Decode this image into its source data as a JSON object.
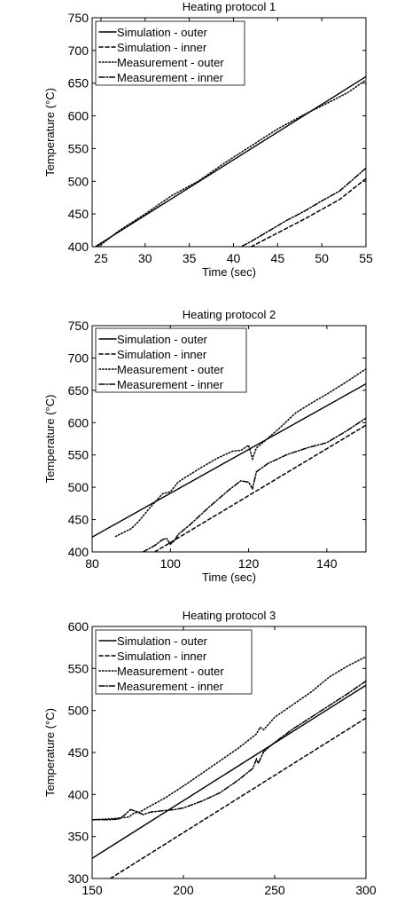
{
  "chart_data": [
    {
      "type": "line",
      "title": "Heating protocol 1",
      "xlabel": "Time (sec)",
      "ylabel": "Temperature (°C)",
      "xlim": [
        24,
        55
      ],
      "ylim": [
        400,
        750
      ],
      "xticks": [
        25,
        30,
        35,
        40,
        45,
        50,
        55
      ],
      "yticks": [
        400,
        450,
        500,
        550,
        600,
        650,
        700,
        750
      ],
      "xtick_labels": [
        "25",
        "30",
        "35",
        "40",
        "45",
        "50",
        "55"
      ],
      "ytick_labels": [
        "400",
        "450",
        "500",
        "550",
        "600",
        "650",
        "700",
        "750"
      ],
      "legend_position": "top-left",
      "grid": false,
      "series": [
        {
          "name": "Simulation - outer",
          "style": "solid",
          "x": [
            24,
            55
          ],
          "y": [
            397,
            660
          ]
        },
        {
          "name": "Simulation - inner",
          "style": "dashed",
          "x": [
            42,
            44,
            46,
            48,
            50,
            52,
            55
          ],
          "y": [
            400,
            414,
            428,
            442,
            457,
            472,
            504
          ]
        },
        {
          "name": "Measurement - outer",
          "style": "dotted",
          "x": [
            24,
            25,
            27,
            30,
            33,
            36,
            39,
            42,
            45,
            48,
            51,
            53,
            55
          ],
          "y": [
            397,
            403,
            424,
            450,
            478,
            500,
            528,
            554,
            580,
            602,
            622,
            636,
            655
          ]
        },
        {
          "name": "Measurement - inner",
          "style": "dashdot",
          "x": [
            41,
            42,
            44,
            46,
            48,
            50,
            52,
            55
          ],
          "y": [
            401,
            408,
            424,
            440,
            454,
            470,
            485,
            520
          ]
        }
      ]
    },
    {
      "type": "line",
      "title": "Heating protocol 2",
      "xlabel": "Time (sec)",
      "ylabel": "Temperature (°C)",
      "xlim": [
        80,
        150
      ],
      "ylim": [
        400,
        750
      ],
      "xticks": [
        80,
        100,
        120,
        140
      ],
      "yticks": [
        400,
        450,
        500,
        550,
        600,
        650,
        700,
        750
      ],
      "xtick_labels": [
        "80",
        "100",
        "120",
        "140"
      ],
      "ytick_labels": [
        "400",
        "450",
        "500",
        "550",
        "600",
        "650",
        "700",
        "750"
      ],
      "legend_position": "top-left",
      "grid": false,
      "series": [
        {
          "name": "Simulation - outer",
          "style": "solid",
          "x": [
            80,
            150
          ],
          "y": [
            423,
            660
          ]
        },
        {
          "name": "Simulation - inner",
          "style": "dashed",
          "x": [
            96,
            150
          ],
          "y": [
            400,
            596
          ]
        },
        {
          "name": "Measurement - outer",
          "style": "dotted",
          "x": [
            86,
            90,
            92,
            95,
            98,
            100,
            102,
            104,
            108,
            112,
            116,
            118,
            120,
            121,
            122,
            124,
            128,
            132,
            136,
            140,
            145,
            150
          ],
          "y": [
            424,
            436,
            448,
            470,
            490,
            493,
            508,
            516,
            531,
            545,
            556,
            557,
            565,
            544,
            561,
            571,
            592,
            615,
            630,
            644,
            663,
            683
          ]
        },
        {
          "name": "Measurement - inner",
          "style": "dashdot",
          "x": [
            93,
            96,
            98,
            99,
            100,
            101,
            102,
            105,
            110,
            115,
            118,
            120,
            121,
            122,
            125,
            130,
            135,
            140,
            145,
            150
          ],
          "y": [
            400,
            410,
            419,
            421,
            412,
            417,
            427,
            442,
            470,
            496,
            510,
            508,
            498,
            524,
            537,
            551,
            561,
            569,
            587,
            607
          ]
        }
      ]
    },
    {
      "type": "line",
      "title": "Heating protocol 3",
      "xlabel": "Time (sec)",
      "ylabel": "Temperature (°C)",
      "xlim": [
        150,
        300
      ],
      "ylim": [
        300,
        600
      ],
      "xticks": [
        150,
        200,
        250,
        300
      ],
      "yticks": [
        300,
        350,
        400,
        450,
        500,
        550,
        600
      ],
      "xtick_labels": [
        "150",
        "200",
        "250",
        "300"
      ],
      "ytick_labels": [
        "300",
        "350",
        "400",
        "450",
        "500",
        "550",
        "600"
      ],
      "legend_position": "top-left",
      "grid": false,
      "series": [
        {
          "name": "Simulation - outer",
          "style": "solid",
          "x": [
            150,
            300
          ],
          "y": [
            324,
            530
          ]
        },
        {
          "name": "Simulation - inner",
          "style": "dashed",
          "x": [
            160,
            300
          ],
          "y": [
            300,
            491
          ]
        },
        {
          "name": "Measurement - outer",
          "style": "dotted",
          "x": [
            150,
            160,
            165,
            170,
            173,
            176,
            180,
            190,
            200,
            210,
            220,
            230,
            240,
            242,
            244,
            250,
            260,
            270,
            280,
            290,
            300
          ],
          "y": [
            370,
            371,
            372,
            373,
            378,
            379,
            384,
            396,
            410,
            425,
            440,
            455,
            472,
            480,
            477,
            492,
            507,
            522,
            540,
            553,
            564
          ]
        },
        {
          "name": "Measurement - inner",
          "style": "dashdot",
          "x": [
            150,
            160,
            165,
            168,
            171,
            174,
            178,
            182,
            186,
            190,
            195,
            200,
            210,
            220,
            230,
            238,
            240,
            241,
            244,
            250,
            260,
            270,
            280,
            290,
            300
          ],
          "y": [
            370,
            370,
            371,
            376,
            382,
            380,
            376,
            379,
            380,
            381,
            382,
            384,
            392,
            402,
            417,
            431,
            442,
            437,
            451,
            462,
            478,
            492,
            506,
            520,
            535
          ]
        }
      ]
    }
  ]
}
